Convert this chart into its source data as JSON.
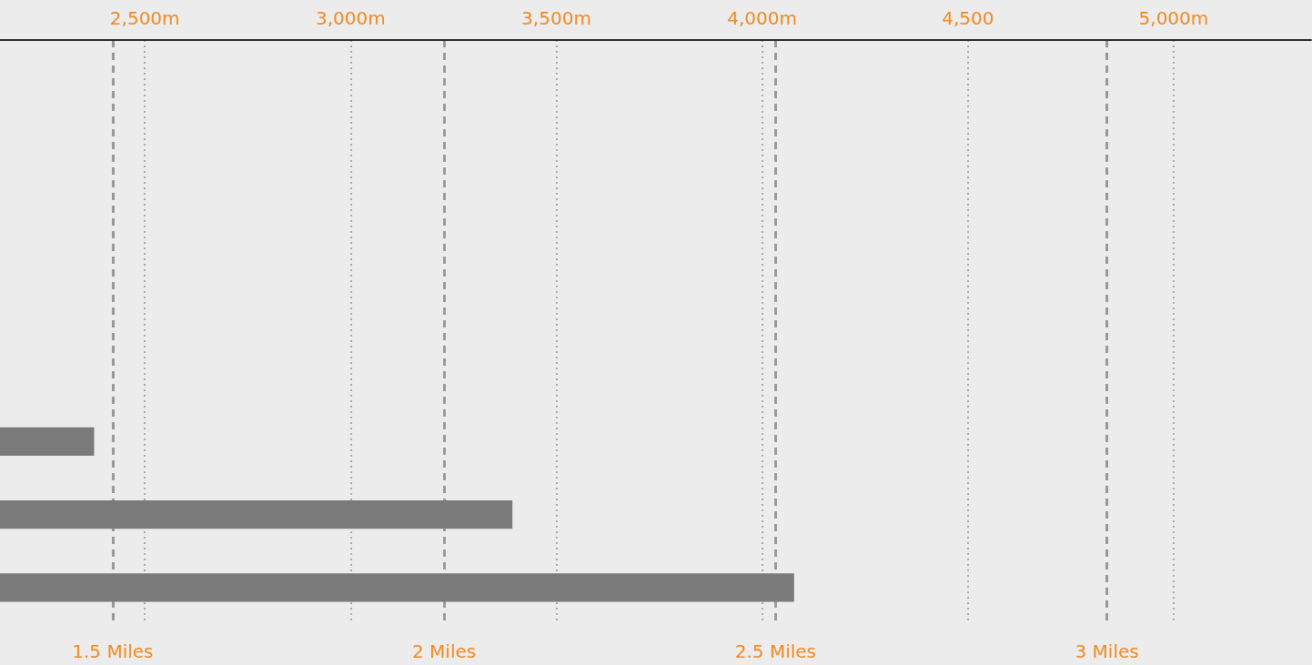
{
  "chart_data": {
    "type": "bar",
    "orientation": "horizontal",
    "categories": [
      null,
      null,
      null,
      null,
      null,
      null,
      null,
      null
    ],
    "values": [
      null,
      null,
      null,
      null,
      null,
      1.472,
      2.103,
      2.528
    ],
    "color": "#7a7a7a",
    "xlim": [
      1.33,
      3.308
    ],
    "xticks": [
      {
        "value": 1.5,
        "label": "1.5 Miles"
      },
      {
        "value": 2,
        "label": "2 Miles"
      },
      {
        "value": 2.5,
        "label": "2.5 Miles"
      },
      {
        "value": 3,
        "label": "3 Miles"
      }
    ],
    "x2lim": [
      2148,
      5334
    ],
    "x2ticks": [
      {
        "value": 2500,
        "label": "2,500m"
      },
      {
        "value": 3000,
        "label": "3,000m"
      },
      {
        "value": 3500,
        "label": "3,500m"
      },
      {
        "value": 4000,
        "label": "4,000m"
      },
      {
        "value": 4500,
        "label": "4,500"
      },
      {
        "value": 5000,
        "label": "5,000m"
      }
    ],
    "grid": true
  }
}
